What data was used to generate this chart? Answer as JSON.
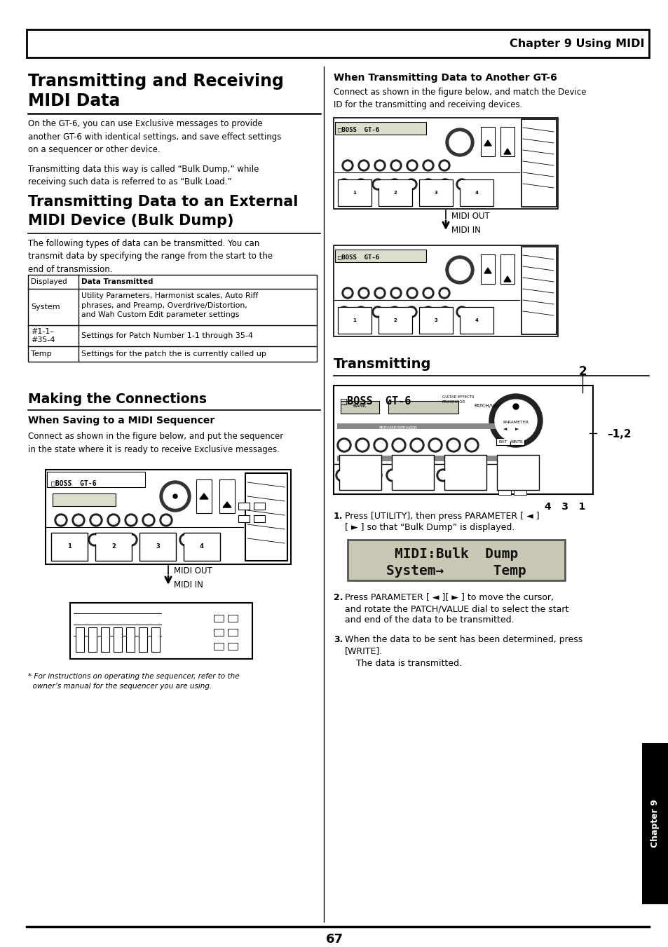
{
  "page_bg": "#ffffff",
  "header_text": "Chapter 9 Using MIDI",
  "title1_line1": "Transmitting and Receiving",
  "title1_line2": "MIDI Data",
  "body1": "On the GT-6, you can use Exclusive messages to provide\nanother GT-6 with identical settings, and save effect settings\non a sequencer or other device.",
  "body1b": "Transmitting data this way is called “Bulk Dump,” while\nreceiving such data is referred to as “Bulk Load.”",
  "title2_line1": "Transmitting Data to an External",
  "title2_line2": "MIDI Device (Bulk Dump)",
  "body2": "The following types of data can be transmitted. You can\ntransmit data by specifying the range from the start to the\nend of transmission.",
  "table_col1_header": "Displayed",
  "table_col2_header": "Data Transmitted",
  "table_row1_c1": "System",
  "table_row1_c2": "Utility Parameters, Harmonist scales, Auto Riff\nphrases, and Preamp, Overdrive/Distortion,\nand Wah Custom Edit parameter settings",
  "table_row2_c1": "#1-1–\n#35-4",
  "table_row2_c2": "Settings for Patch Number 1-1 through 35-4",
  "table_row3_c1": "Temp",
  "table_row3_c2": "Settings for the patch the is currently called up",
  "section_making": "Making the Connections",
  "subsection_saving": "When Saving to a MIDI Sequencer",
  "body_saving": "Connect as shown in the figure below, and put the sequencer\nin the state where it is ready to receive Exclusive messages.",
  "midi_out_label": "MIDI OUT",
  "midi_in_label": "MIDI IN",
  "footnote_line1": "* For instructions on operating the sequencer, refer to the",
  "footnote_line2": "  owner’s manual for the sequencer you are using.",
  "right_title": "When Transmitting Data to Another GT-6",
  "right_body": "Connect as shown in the figure below, and match the Device\nID for the transmitting and receiving devices.",
  "midi_out_label2": "MIDI OUT",
  "midi_in_label2": "MIDI IN",
  "transmitting_title": "Transmitting",
  "label_2": "2",
  "label_12": "–1,2",
  "label_431": "4   3   1",
  "step1_bold": "1.",
  "step1_text": "  Press [UTILITY], then press PARAMETER [ ◄ ]",
  "step1_text2": "    [ ► ] so that “Bulk Dump” is displayed.",
  "lcd_line1": "MIDI:Bulk  Dump",
  "lcd_line2": "System→      Temp",
  "step2_bold": "2.",
  "step2_text": "  Press PARAMETER [ ◄ ][ ► ] to move the cursor,",
  "step2_text2": "    and rotate the PATCH/VALUE dial to select the start",
  "step2_text3": "    and end of the data to be transmitted.",
  "step3_bold": "3.",
  "step3_text": "  When the data to be sent has been determined, press",
  "step3_text2": "    [WRITE].",
  "step3b": "    The data is transmitted.",
  "chapter_tab": "Chapter 9",
  "page_number": "67"
}
